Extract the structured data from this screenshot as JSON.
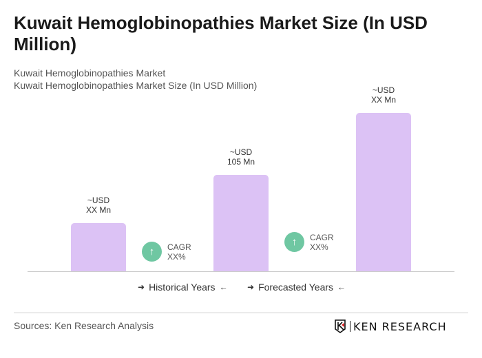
{
  "title": "Kuwait Hemoglobinopathies Market Size (In USD Million)",
  "subtitle1": "Kuwait Hemoglobinopathies Market",
  "subtitle2": "Kuwait Hemoglobinopathies Market Size (In USD Million)",
  "chart_data": {
    "type": "bar",
    "title": "Kuwait Hemoglobinopathies Market Size (In USD Million)",
    "values": [
      52.5,
      105,
      172.5
    ],
    "data_labels": [
      {
        "line1": "~USD",
        "line2": "XX Mn"
      },
      {
        "line1": "~USD",
        "line2": "105 Mn"
      },
      {
        "line1": "~USD",
        "line2": "XX Mn"
      }
    ],
    "bar_color": "#dcc2f5",
    "grid": false,
    "cagr": [
      {
        "line1": "CAGR",
        "line2": "XX%",
        "icon": "arrow-up-icon",
        "color": "#6fc7a2"
      },
      {
        "line1": "CAGR",
        "line2": "XX%",
        "icon": "arrow-up-icon",
        "color": "#6fc7a2"
      }
    ],
    "legend": [
      "Historical Years",
      "Forecasted Years"
    ]
  },
  "footer": {
    "source": "Sources: Ken Research Analysis",
    "logo": "KEN RESEARCH"
  }
}
